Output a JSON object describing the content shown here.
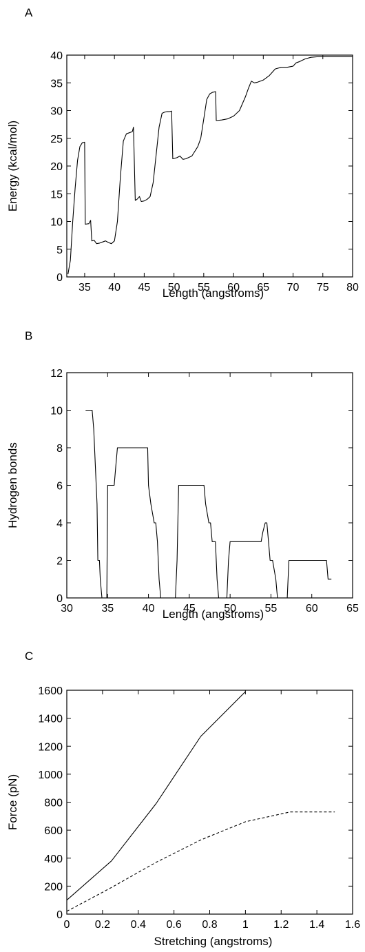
{
  "chart_data": [
    {
      "panel_label": "A",
      "type": "line",
      "xlabel": "Length (angstroms)",
      "ylabel": "Energy (kcal/mol)",
      "xlim": [
        32,
        80
      ],
      "ylim": [
        0,
        40
      ],
      "xticks": [
        35,
        40,
        45,
        50,
        55,
        60,
        65,
        70,
        75,
        80
      ],
      "yticks": [
        0,
        5,
        10,
        15,
        20,
        25,
        30,
        35,
        40
      ],
      "grid": false,
      "series": [
        {
          "style": "solid",
          "x": [
            32.2,
            32.6,
            33.0,
            33.4,
            33.8,
            34.2,
            34.6,
            35.0,
            35.1,
            35.7,
            36.0,
            36.2,
            36.6,
            37.0,
            37.5,
            38.0,
            38.5,
            39.0,
            39.5,
            40.0,
            40.5,
            41.0,
            41.5,
            42.0,
            42.5,
            43.0,
            43.2,
            43.5,
            43.8,
            44.2,
            44.5,
            45.0,
            45.5,
            46.0,
            46.5,
            47.0,
            47.5,
            48.0,
            48.4,
            48.8,
            49.2,
            49.6,
            49.8,
            50.5,
            51.0,
            51.5,
            52.0,
            53.0,
            54.0,
            54.5,
            55.0,
            55.5,
            56.0,
            56.5,
            57.0,
            57.1,
            58.0,
            59.0,
            60.0,
            61.0,
            62.0,
            62.5,
            63.0,
            63.5,
            64.0,
            65.0,
            66.0,
            67.0,
            68.0,
            69.0,
            70.0,
            70.5,
            71.0,
            72.0,
            73.0,
            74.0,
            75.0,
            76.0,
            80.0
          ],
          "y": [
            0.5,
            3.0,
            10.0,
            16.0,
            21.0,
            23.5,
            24.2,
            24.3,
            9.5,
            9.6,
            10.2,
            6.5,
            6.6,
            6.0,
            6.1,
            6.3,
            6.5,
            6.2,
            6.0,
            6.5,
            10.0,
            18.0,
            24.5,
            25.8,
            26.0,
            26.2,
            27.0,
            13.8,
            14.0,
            14.5,
            13.6,
            13.7,
            14.0,
            14.5,
            17.0,
            22.0,
            27.0,
            29.5,
            29.7,
            29.8,
            29.8,
            29.9,
            21.3,
            21.5,
            21.8,
            21.2,
            21.3,
            21.8,
            23.5,
            25.0,
            28.5,
            32.0,
            33.0,
            33.3,
            33.4,
            28.2,
            28.3,
            28.5,
            29.0,
            30.0,
            32.5,
            34.0,
            35.3,
            35.0,
            35.1,
            35.5,
            36.3,
            37.5,
            37.8,
            37.8,
            38.0,
            38.6,
            38.8,
            39.3,
            39.6,
            39.7,
            39.7,
            39.7,
            39.7
          ]
        }
      ]
    },
    {
      "panel_label": "B",
      "type": "line",
      "xlabel": "Length (angstroms)",
      "ylabel": "Hydrogen bonds",
      "xlim": [
        30,
        65
      ],
      "ylim": [
        0,
        12
      ],
      "xticks": [
        30,
        35,
        40,
        45,
        50,
        55,
        60,
        65
      ],
      "yticks": [
        0,
        2,
        4,
        6,
        8,
        10,
        12
      ],
      "grid": false,
      "series": [
        {
          "style": "solid",
          "x": [
            32.3,
            33.1,
            33.3,
            33.5,
            33.7,
            33.8,
            34.0,
            34.1,
            34.3,
            34.5,
            34.7,
            34.9,
            35.0,
            35.8,
            36.0,
            36.2,
            39.9,
            40.0,
            40.3,
            40.7,
            40.9,
            41.1,
            41.3,
            41.5,
            43.3,
            43.5,
            43.7,
            44.0,
            46.8,
            47.0,
            47.4,
            47.6,
            47.8,
            48.2,
            48.4,
            48.6,
            49.6,
            49.8,
            50.0,
            53.8,
            54.0,
            54.3,
            54.5,
            54.7,
            54.9,
            55.2,
            55.6,
            55.8,
            57.0,
            57.2,
            61.8,
            62.0,
            62.4
          ],
          "y": [
            10,
            10,
            9,
            7,
            5,
            2,
            2,
            1,
            0,
            0,
            0,
            0,
            6,
            6,
            7,
            8,
            8,
            6,
            5,
            4,
            4,
            3,
            1,
            0,
            0,
            2,
            6,
            6,
            6,
            5,
            4,
            4,
            3,
            3,
            1,
            0,
            0,
            2,
            3,
            3,
            3.5,
            4,
            4,
            3,
            2,
            2,
            1,
            0,
            0,
            2,
            2,
            1,
            1
          ]
        }
      ]
    },
    {
      "panel_label": "C",
      "type": "line",
      "xlabel": "Stretching (angstroms)",
      "ylabel": "Force (pN)",
      "xlim": [
        0,
        1.6
      ],
      "ylim": [
        0,
        1600
      ],
      "xticks": [
        0,
        0.2,
        0.4,
        0.6,
        0.8,
        1,
        1.2,
        1.4,
        1.6
      ],
      "yticks": [
        0,
        200,
        400,
        600,
        800,
        1000,
        1200,
        1400,
        1600
      ],
      "grid": false,
      "series": [
        {
          "style": "solid",
          "x": [
            0,
            0.25,
            0.5,
            0.75,
            1.0
          ],
          "y": [
            100,
            380,
            790,
            1270,
            1590
          ]
        },
        {
          "style": "dashed",
          "x": [
            0,
            0.25,
            0.5,
            0.75,
            1.0,
            1.25,
            1.5
          ],
          "y": [
            20,
            190,
            370,
            530,
            660,
            730,
            730
          ]
        }
      ]
    }
  ]
}
